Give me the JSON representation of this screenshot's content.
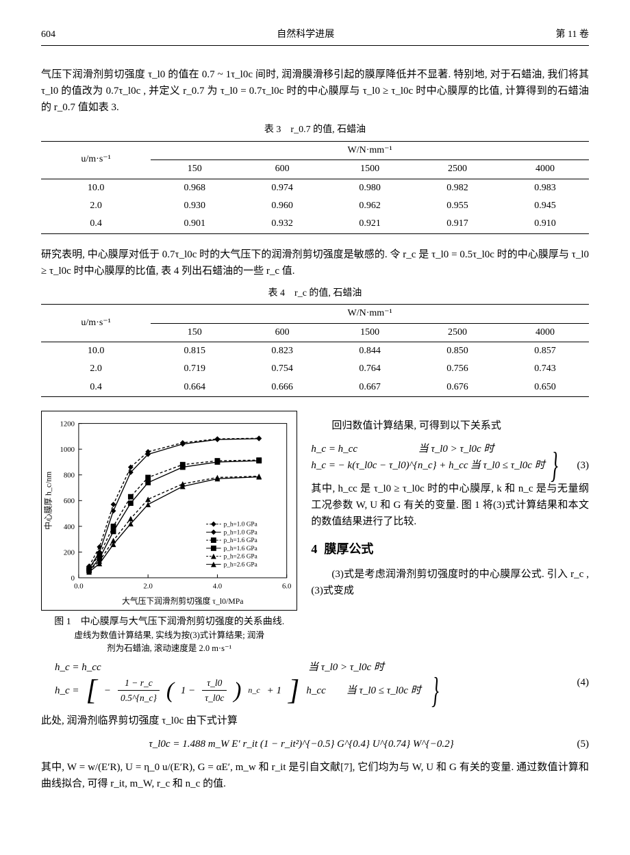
{
  "header": {
    "page_num": "604",
    "journal": "自然科学进展",
    "vol": "第 11 卷"
  },
  "para1": "气压下润滑剂剪切强度 τ_l0 的值在 0.7 ~ 1τ_l0c 间时, 润滑膜滑移引起的膜厚降低并不显著. 特别地, 对于石蜡油, 我们将其 τ_l0 的值改为 0.7τ_l0c , 并定义 r_0.7 为 τ_l0 = 0.7τ_l0c 时的中心膜厚与 τ_l0 ≥ τ_l0c 时中心膜厚的比值, 计算得到的石蜡油的 r_0.7 值如表 3.",
  "table3": {
    "caption": "表 3　r_0.7 的值, 石蜡油",
    "row_head": "u/m·s⁻¹",
    "super_head": "W/N·mm⁻¹",
    "cols": [
      "150",
      "600",
      "1500",
      "2500",
      "4000"
    ],
    "rows": [
      {
        "u": "10.0",
        "v": [
          "0.968",
          "0.974",
          "0.980",
          "0.982",
          "0.983"
        ]
      },
      {
        "u": "2.0",
        "v": [
          "0.930",
          "0.960",
          "0.962",
          "0.955",
          "0.945"
        ]
      },
      {
        "u": "0.4",
        "v": [
          "0.901",
          "0.932",
          "0.921",
          "0.917",
          "0.910"
        ]
      }
    ]
  },
  "para2": "研究表明, 中心膜厚对低于 0.7τ_l0c 时的大气压下的润滑剂剪切强度是敏感的. 令 r_c 是 τ_l0 = 0.5τ_l0c 时的中心膜厚与 τ_l0 ≥ τ_l0c 时中心膜厚的比值, 表 4 列出石蜡油的一些 r_c 值.",
  "table4": {
    "caption": "表 4　r_c 的值, 石蜡油",
    "row_head": "u/m·s⁻¹",
    "super_head": "W/N·mm⁻¹",
    "cols": [
      "150",
      "600",
      "1500",
      "2500",
      "4000"
    ],
    "rows": [
      {
        "u": "10.0",
        "v": [
          "0.815",
          "0.823",
          "0.844",
          "0.850",
          "0.857"
        ]
      },
      {
        "u": "2.0",
        "v": [
          "0.719",
          "0.754",
          "0.764",
          "0.756",
          "0.743"
        ]
      },
      {
        "u": "0.4",
        "v": [
          "0.664",
          "0.666",
          "0.667",
          "0.676",
          "0.650"
        ]
      }
    ]
  },
  "chart": {
    "type": "line",
    "xlabel": "大气压下润滑剂剪切强度 τ_l0/MPa",
    "ylabel": "中心膜厚 h_c/nm",
    "xlim": [
      0.0,
      6.0
    ],
    "xtick_step": 2.0,
    "ylim": [
      0,
      1200
    ],
    "ytick_step": 200,
    "background_color": "#ffffff",
    "axis_color": "#000000",
    "series": [
      {
        "label": "p_h=1.0 GPa",
        "style": "dashed",
        "marker": "diamond",
        "color": "#000000",
        "pts": [
          [
            0.3,
            90
          ],
          [
            0.6,
            240
          ],
          [
            1.0,
            570
          ],
          [
            1.5,
            860
          ],
          [
            2.0,
            980
          ],
          [
            3.0,
            1050
          ],
          [
            4.0,
            1080
          ],
          [
            5.2,
            1085
          ]
        ]
      },
      {
        "label": "p_h=1.0 GPa",
        "style": "solid",
        "marker": "diamond",
        "color": "#000000",
        "pts": [
          [
            0.3,
            70
          ],
          [
            0.6,
            200
          ],
          [
            1.0,
            520
          ],
          [
            1.5,
            820
          ],
          [
            2.0,
            960
          ],
          [
            3.0,
            1040
          ],
          [
            4.0,
            1075
          ],
          [
            5.2,
            1082
          ]
        ]
      },
      {
        "label": "p_h=1.6 GPa",
        "style": "dashed",
        "marker": "square",
        "color": "#000000",
        "pts": [
          [
            0.3,
            70
          ],
          [
            0.6,
            180
          ],
          [
            1.0,
            400
          ],
          [
            1.5,
            630
          ],
          [
            2.0,
            780
          ],
          [
            3.0,
            880
          ],
          [
            4.0,
            910
          ],
          [
            5.2,
            915
          ]
        ]
      },
      {
        "label": "p_h=1.6 GPa",
        "style": "solid",
        "marker": "square",
        "color": "#000000",
        "pts": [
          [
            0.3,
            55
          ],
          [
            0.6,
            150
          ],
          [
            1.0,
            360
          ],
          [
            1.5,
            580
          ],
          [
            2.0,
            740
          ],
          [
            3.0,
            860
          ],
          [
            4.0,
            900
          ],
          [
            5.2,
            910
          ]
        ]
      },
      {
        "label": "p_h=2.6 GPa",
        "style": "dashed",
        "marker": "triangle",
        "color": "#000000",
        "pts": [
          [
            0.3,
            55
          ],
          [
            0.6,
            130
          ],
          [
            1.0,
            290
          ],
          [
            1.5,
            460
          ],
          [
            2.0,
            610
          ],
          [
            3.0,
            730
          ],
          [
            4.0,
            780
          ],
          [
            5.2,
            790
          ]
        ]
      },
      {
        "label": "p_h=2.6 GPa",
        "style": "solid",
        "marker": "triangle",
        "color": "#000000",
        "pts": [
          [
            0.3,
            45
          ],
          [
            0.6,
            110
          ],
          [
            1.0,
            260
          ],
          [
            1.5,
            420
          ],
          [
            2.0,
            570
          ],
          [
            3.0,
            710
          ],
          [
            4.0,
            770
          ],
          [
            5.2,
            785
          ]
        ]
      }
    ],
    "fig_caption": "图 1　中心膜厚与大气压下润滑剂剪切强度的关系曲线.",
    "fig_note1": "虚线为数值计算结果, 实线为按(3)式计算结果; 润滑",
    "fig_note2": "剂为石蜡油, 滚动速度是 2.0 m·s⁻¹"
  },
  "right": {
    "p1": "回归数值计算结果, 可得到以下关系式",
    "eq3a": "h_c = h_cc",
    "eq3a_cond": "当 τ_l0 > τ_l0c 时",
    "eq3b": "h_c = − k(τ_l0c − τ_l0)^{n_c} + h_cc",
    "eq3b_cond": "当 τ_l0 ≤ τ_l0c 时",
    "eq3_num": "(3)",
    "p2": "其中, h_cc 是 τ_l0 ≥ τ_l0c 时的中心膜厚, k 和 n_c 是与无量纲工况参数 W, U 和 G 有关的变量. 图 1 将(3)式计算结果和本文的数值结果进行了比较.",
    "section_num": "4",
    "section_title": "膜厚公式",
    "p3": "(3)式是考虑润滑剂剪切强度时的中心膜厚公式. 引入 r_c , (3)式变成"
  },
  "eq4": {
    "line1": "h_c = h_cc",
    "cond1": "当 τ_l0 > τ_l0c 时",
    "line2_pre": "h_c = ",
    "frac_top": "1 − r_c",
    "frac_bot": "0.5^{n_c}",
    "inner_frac_top": "τ_l0",
    "inner_frac_bot": "τ_l0c",
    "line2_post": " h_cc",
    "cond2": "当 τ_l0 ≤ τ_l0c 时",
    "num": "(4)"
  },
  "para5": "此处, 润滑剂临界剪切强度 τ_l0c 由下式计算",
  "eq5": {
    "body": "τ_l0c = 1.488 m_W E′ r_it (1 − r_it²)^{−0.5} G^{0.4} U^{0.74} W^{−0.2}",
    "num": "(5)"
  },
  "para6": "其中, W = w/(E′R), U = η_0 u/(E′R), G = αE′, m_w 和 r_it 是引自文献[7], 它们均为与 W, U 和 G 有关的变量. 通过数值计算和曲线拟合, 可得 r_it, m_W, r_c 和 n_c 的值."
}
